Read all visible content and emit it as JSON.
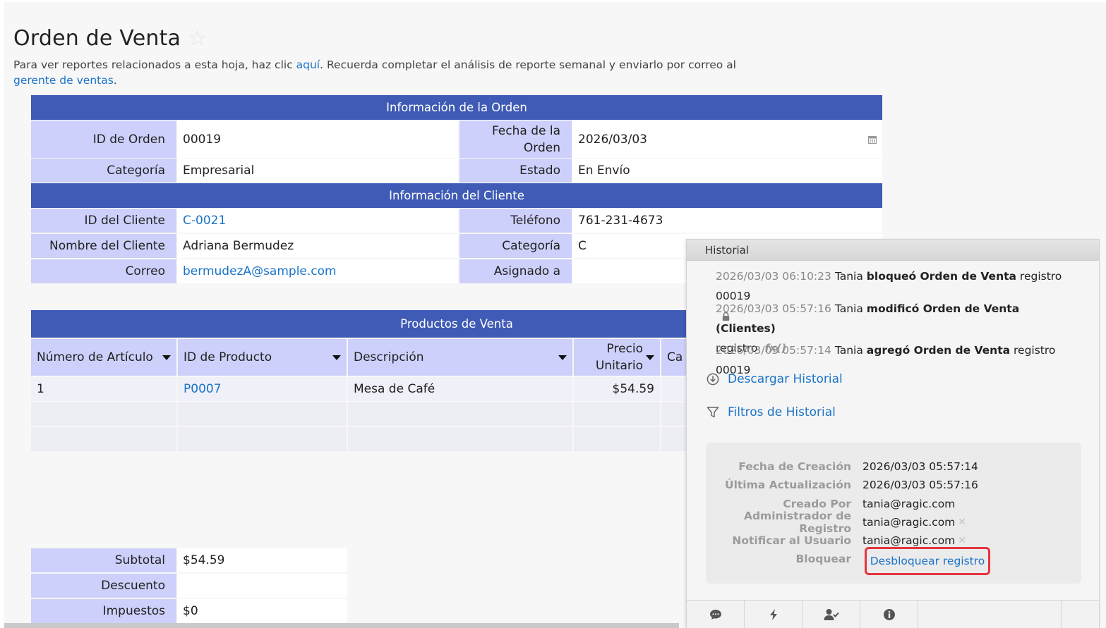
{
  "page": {
    "title": "Orden de Venta",
    "description_part1": "Para ver reportes relacionados a esta hoja, haz clic ",
    "description_link1": "aquí",
    "description_part2": ". Recuerda completar el análisis de reporte semanal y enviarlo por correo al ",
    "description_link2": "gerente de ventas",
    "description_part3": "."
  },
  "order_info": {
    "header": "Información de la Orden",
    "order_id_label": "ID de Orden",
    "order_id": "00019",
    "date_label": "Fecha de la Orden",
    "date": "2026/03/03",
    "category_label": "Categoría",
    "category": "Empresarial",
    "status_label": "Estado",
    "status": "En Envío"
  },
  "client_info": {
    "header": "Información del Cliente",
    "client_id_label": "ID del Cliente",
    "client_id": "C-0021",
    "phone_label": "Teléfono",
    "phone": "761-231-4673",
    "name_label": "Nombre del Cliente",
    "name": "Adriana Bermudez",
    "category_label": "Categoría",
    "category": "C",
    "email_label": "Correo",
    "email": "bermudezA@sample.com",
    "assigned_label": "Asignado a",
    "assigned": ""
  },
  "products": {
    "header": "Productos de Venta",
    "columns": [
      "Número de Artículo",
      "ID de Producto",
      "Descripción",
      "Precio Unitario",
      "Ca"
    ],
    "rows": [
      {
        "item": "1",
        "product_id": "P0007",
        "description": "Mesa de Café",
        "price": "$54.59"
      }
    ]
  },
  "totals": {
    "subtotal_label": "Subtotal",
    "subtotal": "$54.59",
    "discount_label": "Descuento",
    "discount": "",
    "tax_label": "Impuestos",
    "tax": "$0"
  },
  "history": {
    "title": "Historial",
    "entries": [
      {
        "ts": "2026/03/03 06:10:23",
        "user": "Tania",
        "action": "bloqueó Orden de Venta",
        "rest": "registro 00019"
      },
      {
        "ts": "2026/03/03 05:57:16",
        "user": "Tania",
        "action": "modificó Orden de Venta (Clientes)",
        "rest": "registro",
        "fx": "fx()"
      },
      {
        "ts": "2026/03/03 05:57:14",
        "user": "Tania",
        "action": "agregó Orden de Venta",
        "rest": "registro 00019"
      }
    ],
    "download_label": "Descargar Historial",
    "filters_label": "Filtros de Historial",
    "meta": {
      "created_label": "Fecha de Creación",
      "created": "2026/03/03 05:57:14",
      "updated_label": "Última Actualización",
      "updated": "2026/03/03 05:57:16",
      "created_by_label": "Creado Por",
      "created_by": "tania@ragic.com",
      "admin_label": "Administrador de Registro",
      "admin": "tania@ragic.com",
      "notify_label": "Notificar al Usuario",
      "notify": "tania@ragic.com",
      "lock_label": "Bloquear",
      "unlock_link": "Desbloquear registro"
    },
    "toolbar_icons": [
      "comment-icon",
      "lightning-icon",
      "user-check-icon",
      "info-icon"
    ]
  },
  "colors": {
    "section_header": "#3f5bb5",
    "label_bg": "#cdd0fa",
    "link": "#1a73c8",
    "highlight_border": "#e5343d"
  }
}
